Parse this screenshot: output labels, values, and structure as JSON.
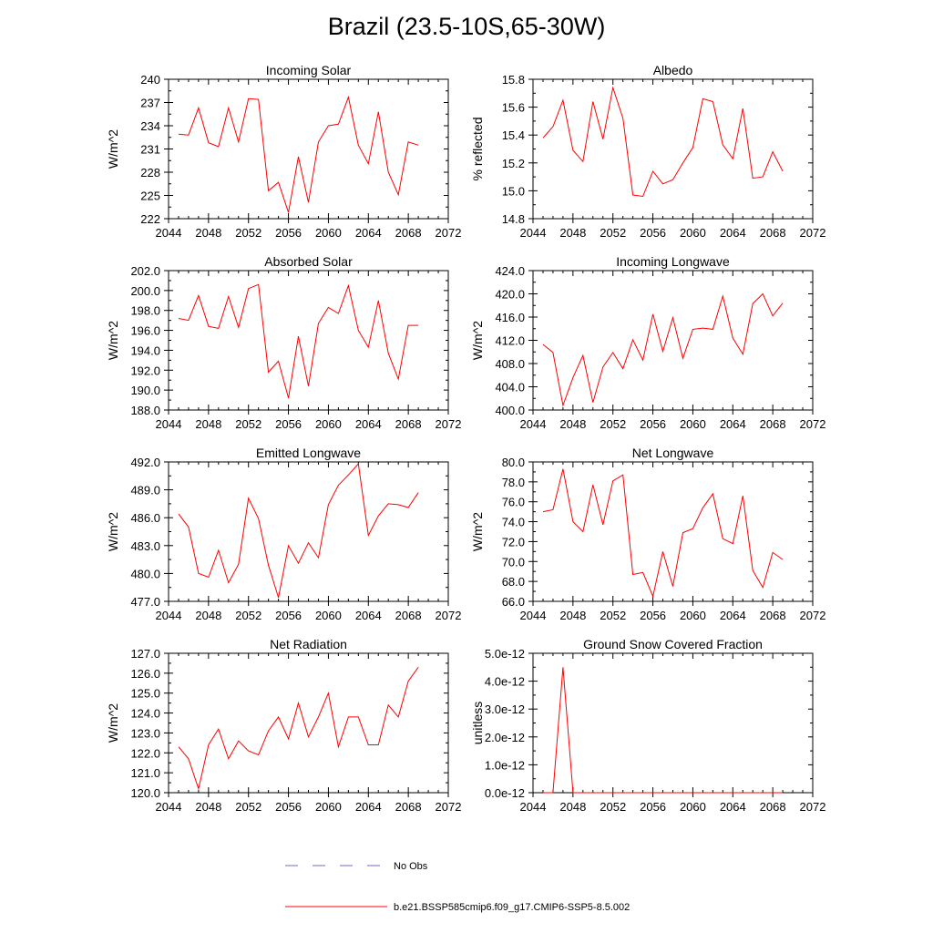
{
  "page": {
    "title": "Brazil (23.5-10S,65-30W)"
  },
  "legend": {
    "entries": [
      {
        "label": "No Obs",
        "color": "#6b6bd6",
        "style": "dashed"
      },
      {
        "label": "b.e21.BSSP585cmip6.f09_g17.CMIP6-SSP5-8.5.002",
        "color": "#ff0000",
        "style": "solid"
      }
    ]
  },
  "chart_data": [
    {
      "type": "line",
      "title": "Incoming Solar",
      "xlabel": "",
      "ylabel": "W/m^2",
      "xlim": [
        2044,
        2072
      ],
      "ylim": [
        222,
        240
      ],
      "xticks": [
        2044,
        2048,
        2052,
        2056,
        2060,
        2064,
        2068,
        2072
      ],
      "xtick_labels": [
        "2044",
        "2048",
        "2052",
        "2056",
        "2060",
        "2064",
        "2068",
        "2072"
      ],
      "yticks": [
        222,
        225,
        228,
        231,
        234,
        237,
        240
      ],
      "ytick_labels": [
        "222",
        "225",
        "228",
        "231",
        "234",
        "237",
        "240"
      ],
      "series": [
        {
          "name": "b.e21.BSSP585cmip6.f09_g17.CMIP6-SSP5-8.5.002",
          "color": "#ff0000",
          "x": [
            2045,
            2046,
            2047,
            2048,
            2049,
            2050,
            2051,
            2052,
            2053,
            2054,
            2055,
            2056,
            2057,
            2058,
            2059,
            2060,
            2061,
            2062,
            2063,
            2064,
            2065,
            2066,
            2067,
            2068,
            2069
          ],
          "y": [
            232.9,
            232.8,
            236.3,
            231.8,
            231.3,
            236.3,
            231.9,
            237.5,
            237.4,
            225.6,
            226.7,
            222.8,
            230.0,
            224.1,
            231.9,
            234.0,
            234.2,
            237.7,
            231.5,
            229.1,
            235.8,
            228.0,
            225.1,
            231.9,
            231.5
          ]
        }
      ]
    },
    {
      "type": "line",
      "title": "Albedo",
      "xlabel": "",
      "ylabel": "% reflected",
      "xlim": [
        2044,
        2072
      ],
      "ylim": [
        14.8,
        15.8
      ],
      "xticks": [
        2044,
        2048,
        2052,
        2056,
        2060,
        2064,
        2068,
        2072
      ],
      "xtick_labels": [
        "2044",
        "2048",
        "2052",
        "2056",
        "2060",
        "2064",
        "2068",
        "2072"
      ],
      "yticks": [
        14.8,
        15.0,
        15.2,
        15.4,
        15.6,
        15.8
      ],
      "ytick_labels": [
        "14.8",
        "15.0",
        "15.2",
        "15.4",
        "15.6",
        "15.8"
      ],
      "series": [
        {
          "name": "b.e21.BSSP585cmip6.f09_g17.CMIP6-SSP5-8.5.002",
          "color": "#ff0000",
          "x": [
            2045,
            2046,
            2047,
            2048,
            2049,
            2050,
            2051,
            2052,
            2053,
            2054,
            2055,
            2056,
            2057,
            2058,
            2059,
            2060,
            2061,
            2062,
            2063,
            2064,
            2065,
            2066,
            2067,
            2068,
            2069
          ],
          "y": [
            15.38,
            15.46,
            15.65,
            15.29,
            15.21,
            15.64,
            15.37,
            15.74,
            15.52,
            14.97,
            14.96,
            15.14,
            15.05,
            15.08,
            15.2,
            15.31,
            15.66,
            15.64,
            15.33,
            15.23,
            15.59,
            15.09,
            15.1,
            15.28,
            15.14
          ]
        }
      ]
    },
    {
      "type": "line",
      "title": "Absorbed Solar",
      "xlabel": "",
      "ylabel": "W/m^2",
      "xlim": [
        2044,
        2072
      ],
      "ylim": [
        188.0,
        202.0
      ],
      "xticks": [
        2044,
        2048,
        2052,
        2056,
        2060,
        2064,
        2068,
        2072
      ],
      "xtick_labels": [
        "2044",
        "2048",
        "2052",
        "2056",
        "2060",
        "2064",
        "2068",
        "2072"
      ],
      "yticks": [
        188,
        190,
        192,
        194,
        196,
        198,
        200,
        202
      ],
      "ytick_labels": [
        "188.0",
        "190.0",
        "192.0",
        "194.0",
        "196.0",
        "198.0",
        "200.0",
        "202.0"
      ],
      "series": [
        {
          "name": "b.e21.BSSP585cmip6.f09_g17.CMIP6-SSP5-8.5.002",
          "color": "#ff0000",
          "x": [
            2045,
            2046,
            2047,
            2048,
            2049,
            2050,
            2051,
            2052,
            2053,
            2054,
            2055,
            2056,
            2057,
            2058,
            2059,
            2060,
            2061,
            2062,
            2063,
            2064,
            2065,
            2066,
            2067,
            2068,
            2069
          ],
          "y": [
            197.2,
            197.0,
            199.5,
            196.4,
            196.2,
            199.4,
            196.3,
            200.2,
            200.6,
            191.8,
            192.9,
            189.2,
            195.4,
            190.4,
            196.7,
            198.3,
            197.7,
            200.5,
            196.0,
            194.3,
            199.0,
            193.7,
            191.1,
            196.5,
            196.5
          ]
        }
      ]
    },
    {
      "type": "line",
      "title": "Incoming Longwave",
      "xlabel": "",
      "ylabel": "W/m^2",
      "xlim": [
        2044,
        2072
      ],
      "ylim": [
        400.0,
        424.0
      ],
      "xticks": [
        2044,
        2048,
        2052,
        2056,
        2060,
        2064,
        2068,
        2072
      ],
      "xtick_labels": [
        "2044",
        "2048",
        "2052",
        "2056",
        "2060",
        "2064",
        "2068",
        "2072"
      ],
      "yticks": [
        400,
        404,
        408,
        412,
        416,
        420,
        424
      ],
      "ytick_labels": [
        "400.0",
        "404.0",
        "408.0",
        "412.0",
        "416.0",
        "420.0",
        "424.0"
      ],
      "series": [
        {
          "name": "b.e21.BSSP585cmip6.f09_g17.CMIP6-SSP5-8.5.002",
          "color": "#ff0000",
          "x": [
            2045,
            2046,
            2047,
            2048,
            2049,
            2050,
            2051,
            2052,
            2053,
            2054,
            2055,
            2056,
            2057,
            2058,
            2059,
            2060,
            2061,
            2062,
            2063,
            2064,
            2065,
            2066,
            2067,
            2068,
            2069
          ],
          "y": [
            411.3,
            409.9,
            400.8,
            405.6,
            409.4,
            401.3,
            407.4,
            409.9,
            407.1,
            412.1,
            408.6,
            416.5,
            410.1,
            415.9,
            408.9,
            413.9,
            414.1,
            413.9,
            419.6,
            412.4,
            409.6,
            418.3,
            420.0,
            416.2,
            418.4
          ]
        }
      ]
    },
    {
      "type": "line",
      "title": "Emitted Longwave",
      "xlabel": "",
      "ylabel": "W/m^2",
      "xlim": [
        2044,
        2072
      ],
      "ylim": [
        477.0,
        492.0
      ],
      "xticks": [
        2044,
        2048,
        2052,
        2056,
        2060,
        2064,
        2068,
        2072
      ],
      "xtick_labels": [
        "2044",
        "2048",
        "2052",
        "2056",
        "2060",
        "2064",
        "2068",
        "2072"
      ],
      "yticks": [
        477,
        480,
        483,
        486,
        489,
        492
      ],
      "ytick_labels": [
        "477.0",
        "480.0",
        "483.0",
        "486.0",
        "489.0",
        "492.0"
      ],
      "series": [
        {
          "name": "b.e21.BSSP585cmip6.f09_g17.CMIP6-SSP5-8.5.002",
          "color": "#ff0000",
          "x": [
            2045,
            2046,
            2047,
            2048,
            2049,
            2050,
            2051,
            2052,
            2053,
            2054,
            2055,
            2056,
            2057,
            2058,
            2059,
            2060,
            2061,
            2062,
            2063,
            2064,
            2065,
            2066,
            2067,
            2068,
            2069
          ],
          "y": [
            486.4,
            485.0,
            480.0,
            479.6,
            482.5,
            479.0,
            481.0,
            488.1,
            485.9,
            480.9,
            477.4,
            483.0,
            481.1,
            483.3,
            481.7,
            487.4,
            489.5,
            490.6,
            491.8,
            484.1,
            486.2,
            487.5,
            487.4,
            487.1,
            488.7
          ]
        }
      ]
    },
    {
      "type": "line",
      "title": "Net Longwave",
      "xlabel": "",
      "ylabel": "W/m^2",
      "xlim": [
        2044,
        2072
      ],
      "ylim": [
        66.0,
        80.0
      ],
      "xticks": [
        2044,
        2048,
        2052,
        2056,
        2060,
        2064,
        2068,
        2072
      ],
      "xtick_labels": [
        "2044",
        "2048",
        "2052",
        "2056",
        "2060",
        "2064",
        "2068",
        "2072"
      ],
      "yticks": [
        66,
        68,
        70,
        72,
        74,
        76,
        78,
        80
      ],
      "ytick_labels": [
        "66.0",
        "68.0",
        "70.0",
        "72.0",
        "74.0",
        "76.0",
        "78.0",
        "80.0"
      ],
      "series": [
        {
          "name": "b.e21.BSSP585cmip6.f09_g17.CMIP6-SSP5-8.5.002",
          "color": "#ff0000",
          "x": [
            2045,
            2046,
            2047,
            2048,
            2049,
            2050,
            2051,
            2052,
            2053,
            2054,
            2055,
            2056,
            2057,
            2058,
            2059,
            2060,
            2061,
            2062,
            2063,
            2064,
            2065,
            2066,
            2067,
            2068,
            2069
          ],
          "y": [
            75.0,
            75.2,
            79.3,
            74.0,
            73.0,
            77.7,
            73.7,
            78.1,
            78.7,
            68.7,
            68.9,
            66.5,
            71.0,
            67.5,
            72.9,
            73.3,
            75.4,
            76.8,
            72.3,
            71.8,
            76.6,
            69.1,
            67.4,
            70.9,
            70.2
          ]
        }
      ]
    },
    {
      "type": "line",
      "title": "Net Radiation",
      "xlabel": "",
      "ylabel": "W/m^2",
      "xlim": [
        2044,
        2072
      ],
      "ylim": [
        120.0,
        127.0
      ],
      "xticks": [
        2044,
        2048,
        2052,
        2056,
        2060,
        2064,
        2068,
        2072
      ],
      "xtick_labels": [
        "2044",
        "2048",
        "2052",
        "2056",
        "2060",
        "2064",
        "2068",
        "2072"
      ],
      "yticks": [
        120,
        121,
        122,
        123,
        124,
        125,
        126,
        127
      ],
      "ytick_labels": [
        "120.0",
        "121.0",
        "122.0",
        "123.0",
        "124.0",
        "125.0",
        "126.0",
        "127.0"
      ],
      "series": [
        {
          "name": "b.e21.BSSP585cmip6.f09_g17.CMIP6-SSP5-8.5.002",
          "color": "#ff0000",
          "x": [
            2045,
            2046,
            2047,
            2048,
            2049,
            2050,
            2051,
            2052,
            2053,
            2054,
            2055,
            2056,
            2057,
            2058,
            2059,
            2060,
            2061,
            2062,
            2063,
            2064,
            2065,
            2066,
            2067,
            2068,
            2069
          ],
          "y": [
            122.3,
            121.7,
            120.2,
            122.4,
            123.2,
            121.7,
            122.6,
            122.1,
            121.9,
            123.1,
            123.8,
            122.7,
            124.5,
            122.8,
            123.8,
            125.0,
            122.3,
            123.8,
            123.8,
            122.4,
            122.4,
            124.4,
            123.8,
            125.6,
            126.3
          ]
        }
      ]
    },
    {
      "type": "line",
      "title": "Ground Snow Covered Fraction",
      "xlabel": "",
      "ylabel": "unitless",
      "xlim": [
        2044,
        2072
      ],
      "ylim": [
        0,
        5e-12
      ],
      "xticks": [
        2044,
        2048,
        2052,
        2056,
        2060,
        2064,
        2068,
        2072
      ],
      "xtick_labels": [
        "2044",
        "2048",
        "2052",
        "2056",
        "2060",
        "2064",
        "2068",
        "2072"
      ],
      "yticks": [
        0,
        1e-12,
        2e-12,
        3e-12,
        4e-12,
        5e-12
      ],
      "ytick_labels": [
        "0.0e-12",
        "1.0e-12",
        "2.0e-12",
        "3.0e-12",
        "4.0e-12",
        "5.0e-12"
      ],
      "series": [
        {
          "name": "b.e21.BSSP585cmip6.f09_g17.CMIP6-SSP5-8.5.002",
          "color": "#ff0000",
          "x": [
            2045,
            2046,
            2047,
            2048,
            2049,
            2050,
            2051,
            2052,
            2053,
            2054,
            2055,
            2056,
            2057,
            2058,
            2059,
            2060,
            2061,
            2062,
            2063,
            2064,
            2065,
            2066,
            2067,
            2068,
            2069
          ],
          "y": [
            0,
            0,
            4.5e-12,
            0,
            0,
            0,
            0,
            0,
            0,
            0,
            0,
            0,
            0,
            0,
            0,
            0,
            0,
            0,
            0,
            0,
            0,
            0,
            0,
            0,
            0
          ]
        }
      ]
    }
  ]
}
